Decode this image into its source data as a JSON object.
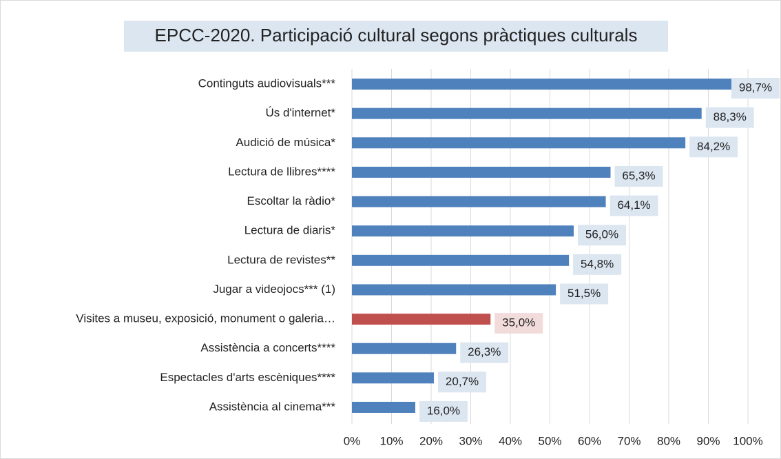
{
  "chart_data": {
    "type": "barh",
    "title": "EPCC-2020. Participació cultural segons pràctiques culturals",
    "categories": [
      "Continguts audiovisuals***",
      "Ús d'internet*",
      "Audició de música*",
      "Lectura de llibres****",
      "Escoltar la ràdio*",
      "Lectura de diaris*",
      "Lectura de revistes**",
      "Jugar a videojocs*** (1)",
      "Visites a museu, exposició, monument o galeria…",
      "Assistència a concerts****",
      "Espectacles d'arts escèniques****",
      "Assistència al cinema***"
    ],
    "values": [
      98.7,
      88.3,
      84.2,
      65.3,
      64.1,
      56.0,
      54.8,
      51.5,
      35.0,
      26.3,
      20.7,
      16.0
    ],
    "value_labels": [
      "98,7%",
      "88,3%",
      "84,2%",
      "65,3%",
      "64,1%",
      "56,0%",
      "54,8%",
      "51,5%",
      "35,0%",
      "26,3%",
      "20,7%",
      "16,0%"
    ],
    "colors": [
      "#4f81bd",
      "#4f81bd",
      "#4f81bd",
      "#4f81bd",
      "#4f81bd",
      "#4f81bd",
      "#4f81bd",
      "#4f81bd",
      "#c0504d",
      "#4f81bd",
      "#4f81bd",
      "#4f81bd"
    ],
    "label_colors": [
      "#dce6f1",
      "#dce6f1",
      "#dce6f1",
      "#dce6f1",
      "#dce6f1",
      "#dce6f1",
      "#dce6f1",
      "#dce6f1",
      "#f2dcdb",
      "#dce6f1",
      "#dce6f1",
      "#dce6f1"
    ],
    "xlim": [
      0,
      100
    ],
    "xticks": [
      {
        "value": 0,
        "label": "0%"
      },
      {
        "value": 10,
        "label": "10%"
      },
      {
        "value": 20,
        "label": "20%"
      },
      {
        "value": 30,
        "label": "30%"
      },
      {
        "value": 40,
        "label": "40%"
      },
      {
        "value": 50,
        "label": "50%"
      },
      {
        "value": 60,
        "label": "60%"
      },
      {
        "value": 70,
        "label": "70%"
      },
      {
        "value": 80,
        "label": "80%"
      },
      {
        "value": 90,
        "label": "90%"
      },
      {
        "value": 100,
        "label": "100%"
      }
    ],
    "grid": true
  }
}
